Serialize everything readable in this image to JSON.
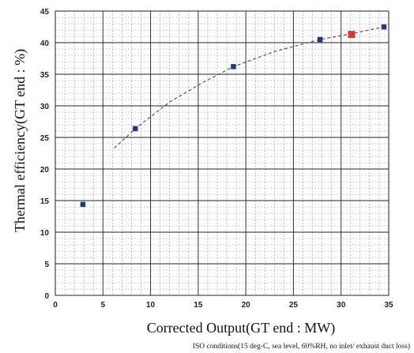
{
  "chart_data": {
    "type": "scatter",
    "title": "",
    "xlabel": "Corrected Output(GT end : MW)",
    "ylabel": "Thermal efficiency(GT end : %)",
    "note": "ISO conditions(15 deg-C, sea level, 60%RH, no inlet/ exhaust duct loss)",
    "xlim": [
      0,
      35
    ],
    "ylim": [
      0,
      45
    ],
    "x_ticks": [
      "0",
      "5",
      "10",
      "15",
      "20",
      "25",
      "30",
      "35"
    ],
    "y_ticks": [
      "0",
      "5",
      "10",
      "15",
      "20",
      "25",
      "30",
      "35",
      "40",
      "45"
    ],
    "grid": true,
    "series": [
      {
        "points": [
          {
            "x": 2.9,
            "y": 14.4
          },
          {
            "x": 8.4,
            "y": 26.4
          },
          {
            "x": 18.7,
            "y": 36.2
          },
          {
            "x": 27.8,
            "y": 40.5
          },
          {
            "x": 34.5,
            "y": 42.5
          }
        ],
        "color": "#1f3d7a"
      },
      {
        "points": [
          {
            "x": 31.1,
            "y": 41.3
          }
        ],
        "color": "#e8302a"
      }
    ],
    "trend_line": {
      "style": "dashed",
      "color": "#555555",
      "points": [
        {
          "x": 6.2,
          "y": 23.3
        },
        {
          "x": 8.4,
          "y": 26.4
        },
        {
          "x": 12.0,
          "y": 30.6
        },
        {
          "x": 15.5,
          "y": 33.7
        },
        {
          "x": 18.7,
          "y": 36.2
        },
        {
          "x": 23.0,
          "y": 38.6
        },
        {
          "x": 27.8,
          "y": 40.5
        },
        {
          "x": 31.1,
          "y": 41.4
        },
        {
          "x": 34.5,
          "y": 42.5
        }
      ]
    }
  }
}
